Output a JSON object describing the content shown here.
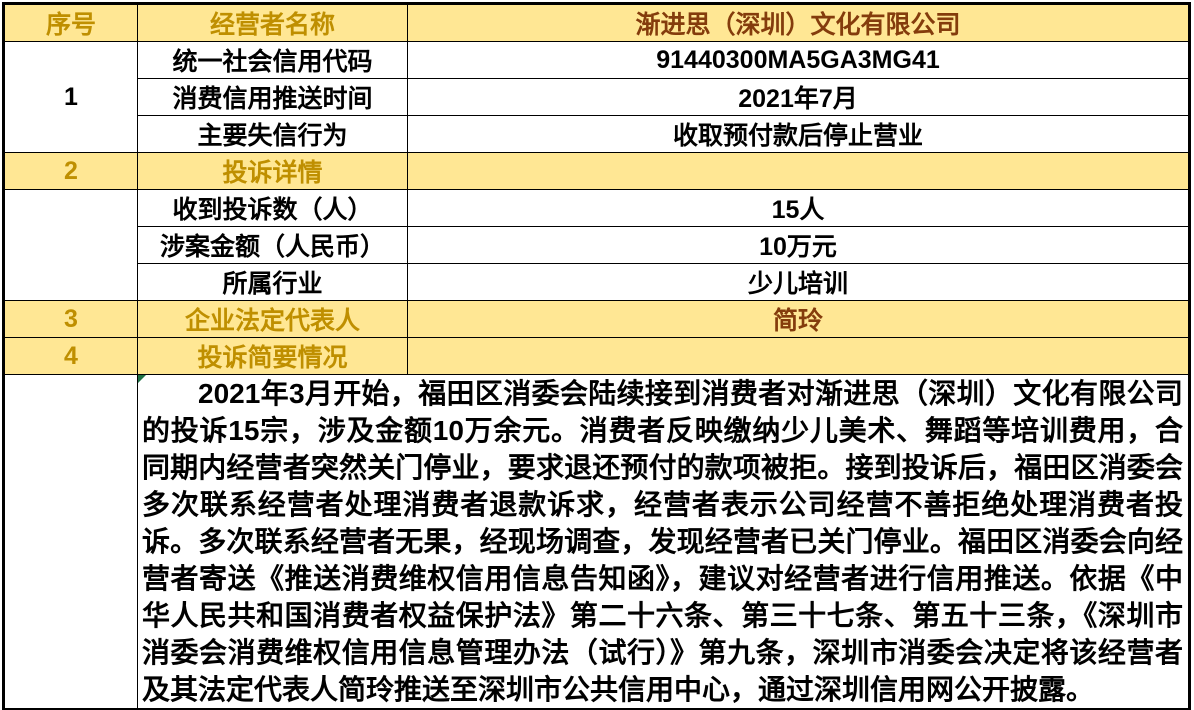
{
  "colors": {
    "row_highlight": "#FFE794",
    "gold_text": "#BF8F00",
    "brown_text": "#843C0C",
    "border": "#000000",
    "error_indicator_green": "#1E7145"
  },
  "header": {
    "seq_label": "序号",
    "operator_name_label": "经营者名称",
    "operator_name_value": "渐进思（深圳）文化有限公司"
  },
  "section1": {
    "seq": "1",
    "rows": [
      {
        "label": "统一社会信用代码",
        "value": "91440300MA5GA3MG41"
      },
      {
        "label": "消费信用推送时间",
        "value": "2021年7月"
      },
      {
        "label": "主要失信行为",
        "value": "收取预付款后停止营业"
      }
    ]
  },
  "section2": {
    "seq": "2",
    "title": "投诉详情",
    "rows": [
      {
        "label": "收到投诉数（人）",
        "value": "15人"
      },
      {
        "label": "涉案金额（人民币）",
        "value": "10万元"
      },
      {
        "label": "所属行业",
        "value": "少儿培训"
      }
    ]
  },
  "section3": {
    "seq": "3",
    "label": "企业法定代表人",
    "value": "简玲"
  },
  "section4": {
    "seq": "4",
    "label": "投诉简要情况"
  },
  "complaint_summary": {
    "text": "2021年3月开始，福田区消委会陆续接到消费者对渐进思（深圳）文化有限公司的投诉15宗，涉及金额10万余元。消费者反映缴纳少儿美术、舞蹈等培训费用，合同期内经营者突然关门停业，要求退还预付的款项被拒。接到投诉后，福田区消委会多次联系经营者处理消费者退款诉求，经营者表示公司经营不善拒绝处理消费者投诉。多次联系经营者无果，经现场调查，发现经营者已关门停业。福田区消委会向经营者寄送《推送消费维权信用信息告知函》，建议对经营者进行信用推送。依据《中华人民共和国消费者权益保护法》第二十六条、第三十七条、第五十三条，《深圳市消委会消费维权信用信息管理办法（试行）》第九条，深圳市消委会决定将该经营者及其法定代表人简玲推送至深圳市公共信用中心，通过深圳信用网公开披露。"
  }
}
